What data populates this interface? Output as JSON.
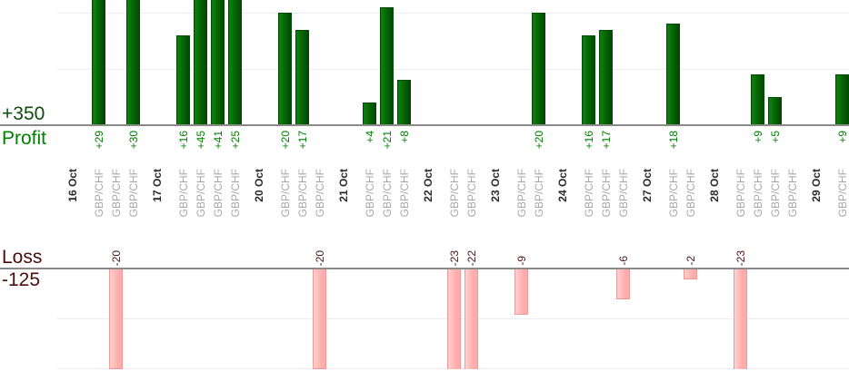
{
  "axes": {
    "profit": {
      "total": "+350",
      "name": "Profit"
    },
    "loss": {
      "name": "Loss",
      "total": "-125"
    }
  },
  "chart_data": {
    "type": "bar",
    "title": "",
    "description_note": "dual horizontal-baseline bar chart: profits above upper axis, losses below lower axis, one bar per trade",
    "xlabel": "",
    "ylabel_top": "Profit",
    "ylabel_bottom": "Loss",
    "profit_total": 350,
    "loss_total": -125,
    "grid": "horizontal lines every 10 units",
    "top_axis_clipped_above": 22,
    "groups": [
      {
        "date": "16 Oct",
        "trades": [
          {
            "symbol": "GBP/CHF",
            "value": 29,
            "label": "+29"
          },
          {
            "symbol": "GBP/CHF",
            "value": -20,
            "label": "-20"
          },
          {
            "symbol": "GBP/CHF",
            "value": 30,
            "label": "+30"
          }
        ]
      },
      {
        "date": "17 Oct",
        "trades": [
          {
            "symbol": "GBP/CHF",
            "value": 16,
            "label": "+16"
          },
          {
            "symbol": "GBP/CHF",
            "value": 45,
            "label": "+45"
          },
          {
            "symbol": "GBP/CHF",
            "value": 41,
            "label": "+41"
          },
          {
            "symbol": "GBP/CHF",
            "value": 25,
            "label": "+25"
          }
        ]
      },
      {
        "date": "20 Oct",
        "trades": [
          {
            "symbol": "GBP/CHF",
            "value": 20,
            "label": "+20"
          },
          {
            "symbol": "GBP/CHF",
            "value": 17,
            "label": "+17"
          },
          {
            "symbol": "GBP/CHF",
            "value": -20,
            "label": "-20"
          }
        ]
      },
      {
        "date": "21 Oct",
        "trades": [
          {
            "symbol": "GBP/CHF",
            "value": 4,
            "label": "+4"
          },
          {
            "symbol": "GBP/CHF",
            "value": 21,
            "label": "+21"
          },
          {
            "symbol": "GBP/CHF",
            "value": 8,
            "label": "+8"
          }
        ]
      },
      {
        "date": "22 Oct",
        "trades": [
          {
            "symbol": "GBP/CHF",
            "value": -23,
            "label": "-23"
          },
          {
            "symbol": "GBP/CHF",
            "value": -22,
            "label": "-22"
          }
        ]
      },
      {
        "date": "23 Oct",
        "trades": [
          {
            "symbol": "GBP/CHF",
            "value": -9,
            "label": "-9"
          },
          {
            "symbol": "GBP/CHF",
            "value": 20,
            "label": "+20"
          }
        ]
      },
      {
        "date": "24 Oct",
        "trades": [
          {
            "symbol": "GBP/CHF",
            "value": 16,
            "label": "+16"
          },
          {
            "symbol": "GBP/CHF",
            "value": 17,
            "label": "+17"
          },
          {
            "symbol": "GBP/CHF",
            "value": -6,
            "label": "-6"
          }
        ]
      },
      {
        "date": "27 Oct",
        "trades": [
          {
            "symbol": "GBP/CHF",
            "value": 18,
            "label": "+18"
          },
          {
            "symbol": "GBP/CHF",
            "value": -2,
            "label": "-2"
          }
        ]
      },
      {
        "date": "28 Oct",
        "trades": [
          {
            "symbol": "GBP/CHF",
            "value": -23,
            "label": "-23"
          },
          {
            "symbol": "GBP/CHF",
            "value": 9,
            "label": "+9"
          },
          {
            "symbol": "GBP/CHF",
            "value": 5,
            "label": "+5"
          },
          {
            "symbol": "GBP/CHF",
            "value": 0,
            "label": ""
          }
        ]
      },
      {
        "date": "29 Oct",
        "trades": [
          {
            "symbol": "GBP/CHF",
            "value": 9,
            "label": "+9"
          }
        ]
      }
    ],
    "colors": {
      "profit_bar_light": "#0d7a0d",
      "profit_bar": "#076607",
      "profit_bar_dark": "#014a01",
      "loss_bar_light": "#ffd2d2",
      "loss_bar": "#ffabab",
      "loss_bar_edge": "#f19999",
      "profit_text": "#008000",
      "loss_text": "#4d1414",
      "profit_total_text": "#0f4d0f",
      "loss_total_text": "#4a0e0e",
      "date_text": "#2b2b2b",
      "symbol_text": "#a8a8a8",
      "axis_line": "#8a8a8a",
      "gridline": "#ededed"
    }
  }
}
